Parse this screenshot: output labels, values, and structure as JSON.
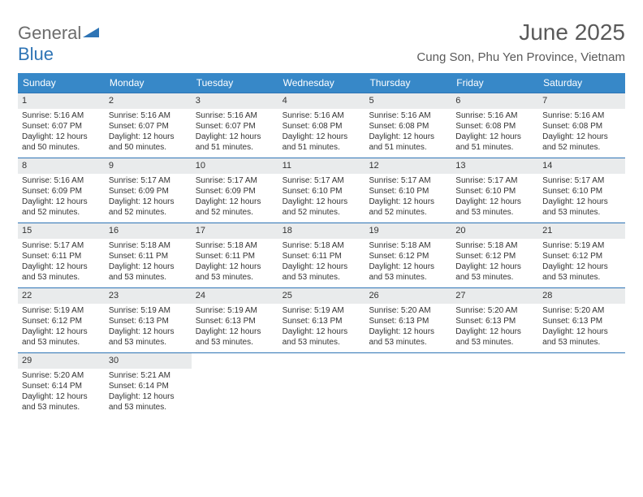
{
  "logo": {
    "textGeneral": "General",
    "textBlue": "Blue"
  },
  "title": "June 2025",
  "location": "Cung Son, Phu Yen Province, Vietnam",
  "colors": {
    "headerBg": "#3788c8",
    "borderBlue": "#2e74b5",
    "dayNumBg": "#e9ebec",
    "textDark": "#333333",
    "titleGray": "#5a5a5a"
  },
  "dayNames": [
    "Sunday",
    "Monday",
    "Tuesday",
    "Wednesday",
    "Thursday",
    "Friday",
    "Saturday"
  ],
  "weeks": [
    [
      {
        "n": "1",
        "sr": "5:16 AM",
        "ss": "6:07 PM",
        "dl": "12 hours and 50 minutes."
      },
      {
        "n": "2",
        "sr": "5:16 AM",
        "ss": "6:07 PM",
        "dl": "12 hours and 50 minutes."
      },
      {
        "n": "3",
        "sr": "5:16 AM",
        "ss": "6:07 PM",
        "dl": "12 hours and 51 minutes."
      },
      {
        "n": "4",
        "sr": "5:16 AM",
        "ss": "6:08 PM",
        "dl": "12 hours and 51 minutes."
      },
      {
        "n": "5",
        "sr": "5:16 AM",
        "ss": "6:08 PM",
        "dl": "12 hours and 51 minutes."
      },
      {
        "n": "6",
        "sr": "5:16 AM",
        "ss": "6:08 PM",
        "dl": "12 hours and 51 minutes."
      },
      {
        "n": "7",
        "sr": "5:16 AM",
        "ss": "6:08 PM",
        "dl": "12 hours and 52 minutes."
      }
    ],
    [
      {
        "n": "8",
        "sr": "5:16 AM",
        "ss": "6:09 PM",
        "dl": "12 hours and 52 minutes."
      },
      {
        "n": "9",
        "sr": "5:17 AM",
        "ss": "6:09 PM",
        "dl": "12 hours and 52 minutes."
      },
      {
        "n": "10",
        "sr": "5:17 AM",
        "ss": "6:09 PM",
        "dl": "12 hours and 52 minutes."
      },
      {
        "n": "11",
        "sr": "5:17 AM",
        "ss": "6:10 PM",
        "dl": "12 hours and 52 minutes."
      },
      {
        "n": "12",
        "sr": "5:17 AM",
        "ss": "6:10 PM",
        "dl": "12 hours and 52 minutes."
      },
      {
        "n": "13",
        "sr": "5:17 AM",
        "ss": "6:10 PM",
        "dl": "12 hours and 53 minutes."
      },
      {
        "n": "14",
        "sr": "5:17 AM",
        "ss": "6:10 PM",
        "dl": "12 hours and 53 minutes."
      }
    ],
    [
      {
        "n": "15",
        "sr": "5:17 AM",
        "ss": "6:11 PM",
        "dl": "12 hours and 53 minutes."
      },
      {
        "n": "16",
        "sr": "5:18 AM",
        "ss": "6:11 PM",
        "dl": "12 hours and 53 minutes."
      },
      {
        "n": "17",
        "sr": "5:18 AM",
        "ss": "6:11 PM",
        "dl": "12 hours and 53 minutes."
      },
      {
        "n": "18",
        "sr": "5:18 AM",
        "ss": "6:11 PM",
        "dl": "12 hours and 53 minutes."
      },
      {
        "n": "19",
        "sr": "5:18 AM",
        "ss": "6:12 PM",
        "dl": "12 hours and 53 minutes."
      },
      {
        "n": "20",
        "sr": "5:18 AM",
        "ss": "6:12 PM",
        "dl": "12 hours and 53 minutes."
      },
      {
        "n": "21",
        "sr": "5:19 AM",
        "ss": "6:12 PM",
        "dl": "12 hours and 53 minutes."
      }
    ],
    [
      {
        "n": "22",
        "sr": "5:19 AM",
        "ss": "6:12 PM",
        "dl": "12 hours and 53 minutes."
      },
      {
        "n": "23",
        "sr": "5:19 AM",
        "ss": "6:13 PM",
        "dl": "12 hours and 53 minutes."
      },
      {
        "n": "24",
        "sr": "5:19 AM",
        "ss": "6:13 PM",
        "dl": "12 hours and 53 minutes."
      },
      {
        "n": "25",
        "sr": "5:19 AM",
        "ss": "6:13 PM",
        "dl": "12 hours and 53 minutes."
      },
      {
        "n": "26",
        "sr": "5:20 AM",
        "ss": "6:13 PM",
        "dl": "12 hours and 53 minutes."
      },
      {
        "n": "27",
        "sr": "5:20 AM",
        "ss": "6:13 PM",
        "dl": "12 hours and 53 minutes."
      },
      {
        "n": "28",
        "sr": "5:20 AM",
        "ss": "6:13 PM",
        "dl": "12 hours and 53 minutes."
      }
    ],
    [
      {
        "n": "29",
        "sr": "5:20 AM",
        "ss": "6:14 PM",
        "dl": "12 hours and 53 minutes."
      },
      {
        "n": "30",
        "sr": "5:21 AM",
        "ss": "6:14 PM",
        "dl": "12 hours and 53 minutes."
      },
      null,
      null,
      null,
      null,
      null
    ]
  ],
  "labels": {
    "sunrise": "Sunrise:",
    "sunset": "Sunset:",
    "daylight": "Daylight:"
  }
}
